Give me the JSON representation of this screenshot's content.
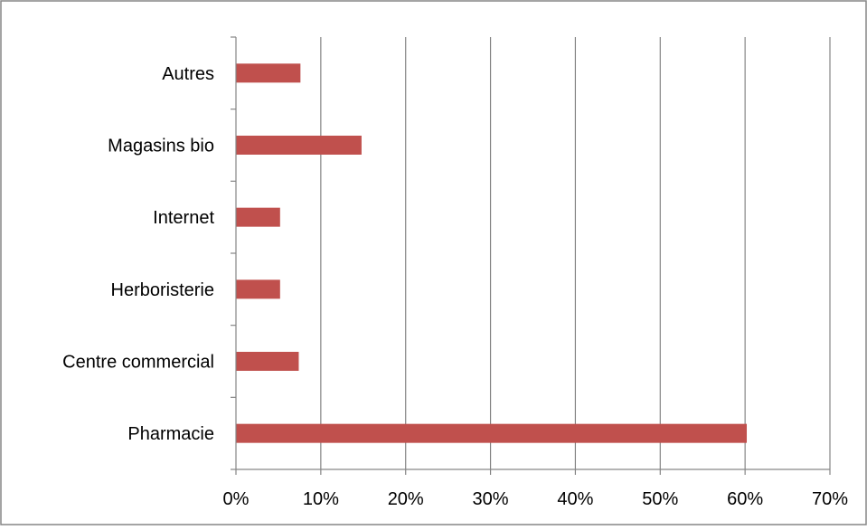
{
  "chart_data": {
    "type": "bar",
    "orientation": "horizontal",
    "categories": [
      "Pharmacie",
      "Centre commercial",
      "Herboristerie",
      "Internet",
      "Magasins bio",
      "Autres"
    ],
    "values": [
      60.2,
      7.4,
      5.2,
      5.2,
      14.8,
      7.6
    ],
    "value_unit": "%",
    "xlim": [
      0,
      70
    ],
    "x_ticks": [
      "0%",
      "10%",
      "20%",
      "30%",
      "40%",
      "50%",
      "60%",
      "70%"
    ],
    "grid": "vertical",
    "legend": "none",
    "title": "",
    "xlabel": "",
    "ylabel": "",
    "colors": {
      "bar": "#C0504D",
      "grid": "#868686",
      "axis": "#868686",
      "border": "#868686"
    }
  }
}
